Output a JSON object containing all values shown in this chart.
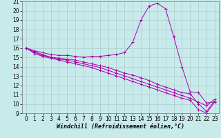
{
  "xlabel": "Windchill (Refroidissement éolien,°C)",
  "background_color": "#c8eaea",
  "grid_color": "#aacccc",
  "line_color": "#aa00aa",
  "xlim": [
    -0.5,
    23.5
  ],
  "ylim": [
    9,
    21
  ],
  "xticks": [
    0,
    1,
    2,
    3,
    4,
    5,
    6,
    7,
    8,
    9,
    10,
    11,
    12,
    13,
    14,
    15,
    16,
    17,
    18,
    19,
    20,
    21,
    22,
    23
  ],
  "yticks": [
    9,
    10,
    11,
    12,
    13,
    14,
    15,
    16,
    17,
    18,
    19,
    20,
    21
  ],
  "hours": [
    0,
    1,
    2,
    3,
    4,
    5,
    6,
    7,
    8,
    9,
    10,
    11,
    12,
    13,
    14,
    15,
    16,
    17,
    18,
    19,
    20,
    21,
    22,
    23
  ],
  "curve1": [
    16.0,
    15.7,
    15.5,
    15.3,
    15.2,
    15.2,
    15.1,
    15.0,
    15.1,
    15.1,
    15.2,
    15.3,
    15.5,
    16.6,
    19.0,
    20.5,
    20.8,
    20.2,
    17.2,
    14.0,
    11.3,
    11.2,
    10.1,
    10.2
  ],
  "curve2": [
    16.0,
    15.5,
    15.2,
    15.0,
    14.9,
    14.8,
    14.7,
    14.5,
    14.3,
    14.1,
    13.9,
    13.6,
    13.3,
    13.1,
    12.8,
    12.5,
    12.1,
    11.8,
    11.5,
    11.2,
    11.1,
    10.0,
    9.2,
    10.3
  ],
  "curve3": [
    16.0,
    15.4,
    15.1,
    14.9,
    14.7,
    14.5,
    14.3,
    14.1,
    13.9,
    13.6,
    13.3,
    13.0,
    12.7,
    12.4,
    12.1,
    11.8,
    11.5,
    11.2,
    10.9,
    10.6,
    10.4,
    9.4,
    9.0,
    10.2
  ],
  "curve4": [
    16.0,
    15.6,
    15.3,
    15.0,
    14.8,
    14.7,
    14.5,
    14.3,
    14.1,
    13.9,
    13.6,
    13.3,
    13.0,
    12.7,
    12.4,
    12.1,
    11.8,
    11.5,
    11.2,
    10.9,
    10.6,
    10.2,
    9.8,
    10.5
  ],
  "xlabel_fontsize": 6,
  "tick_fontsize": 5.5
}
